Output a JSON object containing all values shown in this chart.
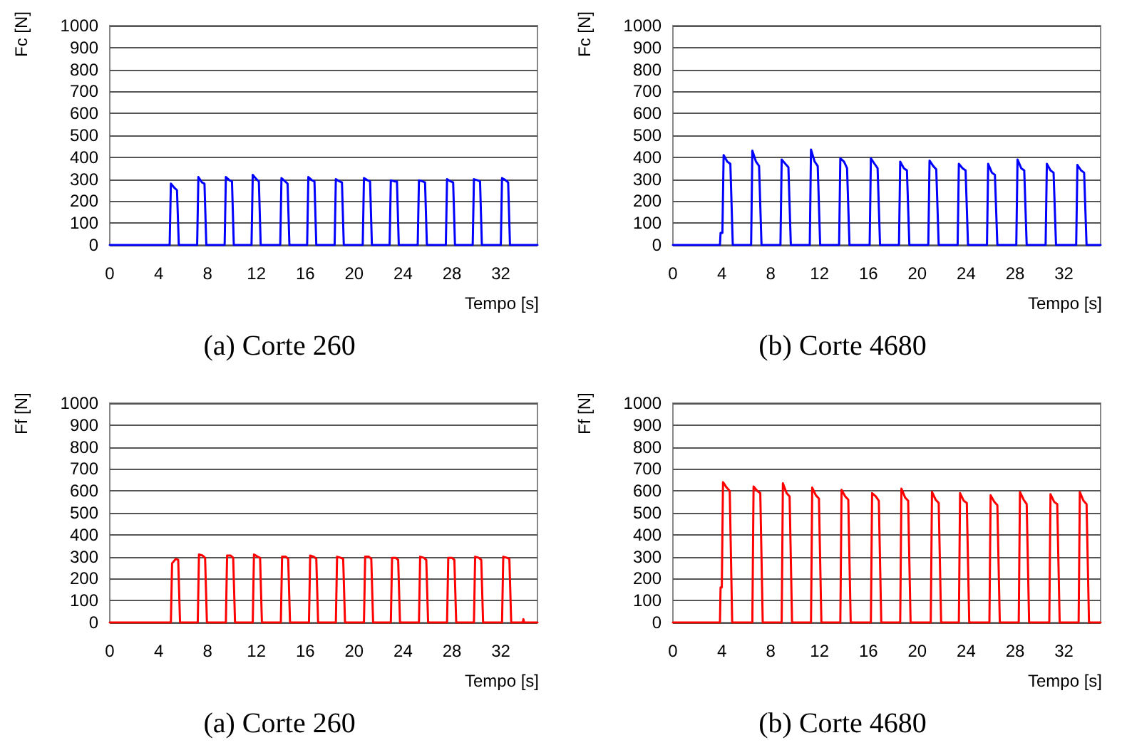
{
  "chart_data": [
    {
      "type": "line",
      "title": "(a) Corte 260",
      "xlabel": "Tempo [s]",
      "ylabel": "Fc [N]",
      "xlim": [
        0,
        35
      ],
      "xticks": [
        0,
        4,
        8,
        12,
        16,
        20,
        24,
        28,
        32
      ],
      "ylim": [
        0,
        1000
      ],
      "yticks": [
        0,
        100,
        200,
        300,
        400,
        500,
        600,
        700,
        800,
        900,
        1000
      ],
      "grid": "y",
      "series": [
        {
          "color": "#0000ff",
          "x": [
            0,
            4.9,
            5.0,
            5.3,
            5.5,
            5.65,
            7.15,
            7.25,
            7.55,
            7.75,
            7.9,
            9.4,
            9.5,
            9.8,
            10.0,
            10.15,
            11.6,
            11.7,
            12.0,
            12.2,
            12.35,
            13.95,
            14.05,
            14.35,
            14.55,
            14.7,
            16.15,
            16.25,
            16.55,
            16.75,
            16.9,
            18.4,
            18.5,
            18.8,
            19.0,
            19.15,
            20.7,
            20.8,
            21.1,
            21.3,
            21.45,
            22.9,
            23.0,
            23.3,
            23.5,
            23.65,
            25.2,
            25.3,
            25.6,
            25.8,
            25.95,
            27.5,
            27.6,
            27.9,
            28.1,
            28.25,
            29.7,
            29.8,
            30.1,
            30.3,
            30.45,
            32.0,
            32.1,
            32.4,
            32.6,
            32.75,
            35
          ],
          "values": [
            0,
            0,
            280,
            260,
            250,
            0,
            0,
            310,
            285,
            280,
            0,
            0,
            310,
            295,
            290,
            0,
            0,
            320,
            300,
            290,
            0,
            0,
            305,
            290,
            280,
            0,
            0,
            310,
            295,
            290,
            0,
            0,
            300,
            290,
            285,
            0,
            0,
            305,
            295,
            290,
            0,
            0,
            295,
            290,
            290,
            0,
            0,
            295,
            290,
            285,
            0,
            0,
            300,
            290,
            285,
            0,
            0,
            300,
            295,
            290,
            0,
            0,
            305,
            295,
            285,
            0,
            0
          ]
        }
      ]
    },
    {
      "type": "line",
      "title": "(b) Corte 4680",
      "xlabel": "Tempo [s]",
      "ylabel": "Fc [N]",
      "xlim": [
        0,
        35
      ],
      "xticks": [
        0,
        4,
        8,
        12,
        16,
        20,
        24,
        28,
        32
      ],
      "ylim": [
        0,
        1000
      ],
      "yticks": [
        0,
        100,
        200,
        300,
        400,
        500,
        600,
        700,
        800,
        900,
        1000
      ],
      "grid": "y",
      "series": [
        {
          "color": "#0000ff",
          "x": [
            0,
            3.85,
            3.9,
            4.05,
            4.15,
            4.45,
            4.7,
            4.9,
            6.4,
            6.5,
            6.8,
            7.05,
            7.25,
            8.8,
            8.9,
            9.2,
            9.45,
            9.65,
            11.2,
            11.3,
            11.6,
            11.85,
            12.05,
            13.6,
            13.7,
            14.0,
            14.25,
            14.45,
            16.1,
            16.2,
            16.5,
            16.75,
            16.95,
            18.5,
            18.6,
            18.9,
            19.15,
            19.35,
            20.9,
            21.0,
            21.3,
            21.55,
            21.75,
            23.3,
            23.4,
            23.7,
            23.95,
            24.15,
            25.7,
            25.8,
            26.1,
            26.35,
            26.55,
            28.1,
            28.2,
            28.5,
            28.75,
            28.95,
            30.5,
            30.6,
            30.9,
            31.15,
            31.35,
            33.0,
            33.1,
            33.4,
            33.65,
            33.85,
            35
          ],
          "values": [
            0,
            0,
            55,
            55,
            410,
            380,
            370,
            0,
            0,
            430,
            380,
            360,
            0,
            0,
            390,
            370,
            355,
            0,
            0,
            435,
            380,
            360,
            0,
            0,
            395,
            380,
            350,
            0,
            0,
            395,
            370,
            350,
            0,
            0,
            380,
            350,
            340,
            0,
            0,
            385,
            360,
            345,
            0,
            0,
            370,
            350,
            340,
            0,
            0,
            370,
            330,
            320,
            0,
            0,
            390,
            350,
            340,
            0,
            0,
            370,
            340,
            330,
            0,
            0,
            365,
            340,
            330,
            0,
            0
          ]
        }
      ]
    },
    {
      "type": "line",
      "title": "(a) Corte 260",
      "xlabel": "Tempo [s]",
      "ylabel": "Ff [N]",
      "xlim": [
        0,
        35
      ],
      "xticks": [
        0,
        4,
        8,
        12,
        16,
        20,
        24,
        28,
        32
      ],
      "ylim": [
        0,
        1000
      ],
      "yticks": [
        0,
        100,
        200,
        300,
        400,
        500,
        600,
        700,
        800,
        900,
        1000
      ],
      "grid": "y",
      "series": [
        {
          "color": "#ff0000",
          "x": [
            0,
            5.0,
            5.1,
            5.4,
            5.6,
            5.75,
            7.2,
            7.3,
            7.6,
            7.8,
            7.95,
            9.5,
            9.6,
            9.9,
            10.1,
            10.25,
            11.7,
            11.8,
            12.1,
            12.3,
            12.45,
            14.0,
            14.1,
            14.4,
            14.6,
            14.75,
            16.3,
            16.4,
            16.7,
            16.9,
            17.05,
            18.5,
            18.6,
            18.9,
            19.1,
            19.25,
            20.8,
            20.9,
            21.2,
            21.4,
            21.55,
            23.0,
            23.1,
            23.4,
            23.6,
            23.75,
            25.3,
            25.4,
            25.7,
            25.9,
            26.05,
            27.6,
            27.7,
            28.0,
            28.2,
            28.35,
            29.8,
            29.9,
            30.2,
            30.4,
            30.55,
            32.1,
            32.2,
            32.5,
            32.7,
            32.85,
            33.8,
            33.85,
            33.9,
            35
          ],
          "values": [
            0,
            0,
            270,
            290,
            285,
            0,
            0,
            310,
            305,
            295,
            0,
            0,
            305,
            305,
            295,
            0,
            0,
            310,
            300,
            295,
            0,
            0,
            300,
            300,
            290,
            0,
            0,
            305,
            300,
            290,
            0,
            0,
            300,
            295,
            290,
            0,
            0,
            300,
            300,
            290,
            0,
            0,
            295,
            295,
            285,
            0,
            0,
            300,
            295,
            285,
            0,
            0,
            295,
            295,
            285,
            0,
            0,
            300,
            295,
            285,
            0,
            0,
            300,
            295,
            290,
            0,
            0,
            15,
            0,
            0
          ]
        }
      ]
    },
    {
      "type": "line",
      "title": "(b) Corte 4680",
      "xlabel": "Tempo [s]",
      "ylabel": "Ff [N]",
      "xlim": [
        0,
        35
      ],
      "xticks": [
        0,
        4,
        8,
        12,
        16,
        20,
        24,
        28,
        32
      ],
      "ylim": [
        0,
        1000
      ],
      "yticks": [
        0,
        100,
        200,
        300,
        400,
        500,
        600,
        700,
        800,
        900,
        1000
      ],
      "grid": "y",
      "series": [
        {
          "color": "#ff0000",
          "x": [
            0,
            3.85,
            3.9,
            4.0,
            4.1,
            4.4,
            4.65,
            4.85,
            6.5,
            6.6,
            6.9,
            7.15,
            7.35,
            8.9,
            9.0,
            9.3,
            9.55,
            9.75,
            11.3,
            11.4,
            11.7,
            11.95,
            12.15,
            13.7,
            13.8,
            14.1,
            14.35,
            14.55,
            16.2,
            16.3,
            16.6,
            16.85,
            17.05,
            18.6,
            18.7,
            19.0,
            19.25,
            19.45,
            21.1,
            21.2,
            21.5,
            21.75,
            21.95,
            23.4,
            23.5,
            23.8,
            24.05,
            24.25,
            25.9,
            26.0,
            26.3,
            26.55,
            26.75,
            28.3,
            28.4,
            28.7,
            28.95,
            29.15,
            30.8,
            30.9,
            31.2,
            31.45,
            31.65,
            33.2,
            33.3,
            33.6,
            33.85,
            34.05,
            35
          ],
          "values": [
            0,
            0,
            160,
            160,
            640,
            615,
            600,
            0,
            0,
            620,
            600,
            590,
            0,
            0,
            635,
            590,
            575,
            0,
            0,
            615,
            580,
            565,
            0,
            0,
            605,
            575,
            560,
            0,
            0,
            590,
            575,
            555,
            0,
            0,
            610,
            570,
            555,
            0,
            0,
            595,
            560,
            545,
            0,
            0,
            590,
            555,
            545,
            0,
            0,
            580,
            550,
            535,
            0,
            0,
            595,
            560,
            540,
            0,
            0,
            585,
            550,
            540,
            0,
            0,
            595,
            555,
            540,
            0,
            0
          ]
        }
      ]
    }
  ]
}
